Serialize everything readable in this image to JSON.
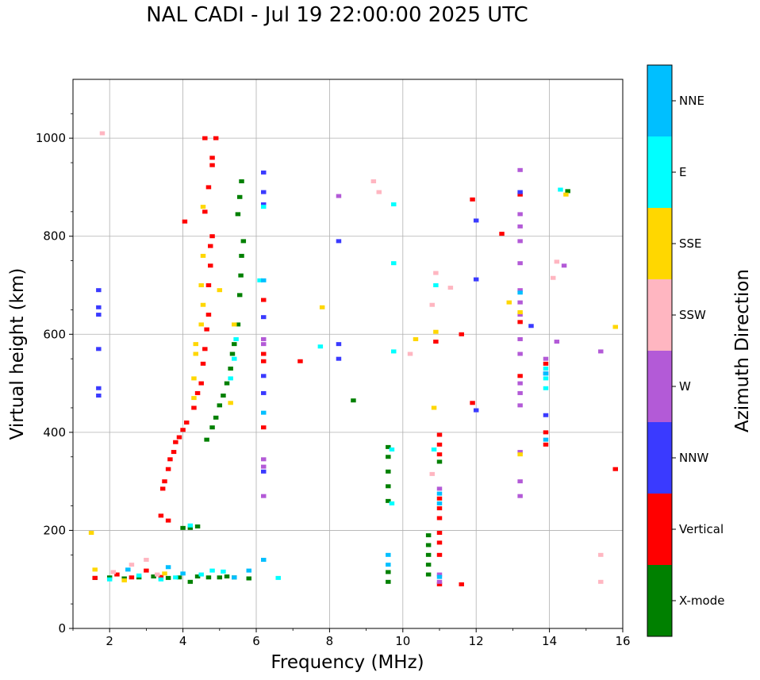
{
  "title": "NAL CADI - Jul 19 22:00:00 2025 UTC",
  "chart_data": {
    "type": "scatter",
    "title": "NAL CADI - Jul 19 22:00:00 2025 UTC",
    "xlabel": "Frequency (MHz)",
    "ylabel": "Virtual height (km)",
    "xlim": [
      1,
      16
    ],
    "ylim": [
      0,
      1120
    ],
    "xticks": [
      2,
      4,
      6,
      8,
      10,
      12,
      14,
      16
    ],
    "yticks": [
      0,
      200,
      400,
      600,
      800,
      1000
    ],
    "grid": true,
    "colorbar": {
      "label": "Azimuth Direction",
      "categories": [
        {
          "name": "X-mode",
          "color": "#008000"
        },
        {
          "name": "Vertical",
          "color": "#ff0000"
        },
        {
          "name": "NNW",
          "color": "#3a3aff"
        },
        {
          "name": "W",
          "color": "#b35ad7"
        },
        {
          "name": "SSW",
          "color": "#ffb6c1"
        },
        {
          "name": "SSE",
          "color": "#ffd700"
        },
        {
          "name": "E",
          "color": "#00ffff"
        },
        {
          "name": "NNE",
          "color": "#00bfff"
        }
      ]
    },
    "series": [
      {
        "name": "X-mode",
        "points": [
          [
            1.6,
            103
          ],
          [
            2.0,
            104
          ],
          [
            2.4,
            102
          ],
          [
            2.8,
            104
          ],
          [
            3.2,
            106
          ],
          [
            3.6,
            103
          ],
          [
            3.9,
            104
          ],
          [
            4.2,
            95
          ],
          [
            4.4,
            106
          ],
          [
            4.7,
            104
          ],
          [
            5.0,
            104
          ],
          [
            5.2,
            106
          ],
          [
            5.4,
            104
          ],
          [
            5.8,
            102
          ],
          [
            4.0,
            205
          ],
          [
            4.2,
            205
          ],
          [
            4.4,
            208
          ],
          [
            4.65,
            385
          ],
          [
            4.8,
            410
          ],
          [
            4.9,
            430
          ],
          [
            5.0,
            455
          ],
          [
            5.1,
            475
          ],
          [
            5.2,
            500
          ],
          [
            5.3,
            530
          ],
          [
            5.35,
            560
          ],
          [
            5.4,
            580
          ],
          [
            5.5,
            620
          ],
          [
            5.55,
            680
          ],
          [
            5.58,
            720
          ],
          [
            5.6,
            760
          ],
          [
            5.65,
            790
          ],
          [
            5.5,
            845
          ],
          [
            5.55,
            880
          ],
          [
            5.6,
            912
          ],
          [
            8.65,
            465
          ],
          [
            9.6,
            95
          ],
          [
            9.6,
            115
          ],
          [
            9.6,
            260
          ],
          [
            9.6,
            290
          ],
          [
            9.6,
            320
          ],
          [
            9.6,
            350
          ],
          [
            9.6,
            370
          ],
          [
            10.7,
            110
          ],
          [
            10.7,
            130
          ],
          [
            10.7,
            150
          ],
          [
            10.7,
            170
          ],
          [
            10.7,
            190
          ],
          [
            11.0,
            340
          ],
          [
            14.5,
            892
          ]
        ]
      },
      {
        "name": "Vertical",
        "points": [
          [
            1.6,
            103
          ],
          [
            2.2,
            110
          ],
          [
            2.6,
            104
          ],
          [
            3.0,
            118
          ],
          [
            3.4,
            105
          ],
          [
            3.6,
            220
          ],
          [
            3.4,
            230
          ],
          [
            3.45,
            285
          ],
          [
            3.5,
            300
          ],
          [
            3.6,
            325
          ],
          [
            3.65,
            345
          ],
          [
            3.75,
            360
          ],
          [
            3.8,
            380
          ],
          [
            3.9,
            390
          ],
          [
            4.0,
            405
          ],
          [
            4.1,
            420
          ],
          [
            4.3,
            450
          ],
          [
            4.4,
            480
          ],
          [
            4.5,
            500
          ],
          [
            4.55,
            540
          ],
          [
            4.6,
            570
          ],
          [
            4.65,
            610
          ],
          [
            4.7,
            640
          ],
          [
            4.7,
            700
          ],
          [
            4.75,
            740
          ],
          [
            4.75,
            780
          ],
          [
            4.8,
            800
          ],
          [
            4.6,
            850
          ],
          [
            4.7,
            900
          ],
          [
            4.8,
            945
          ],
          [
            4.8,
            960
          ],
          [
            4.6,
            1000
          ],
          [
            4.9,
            1000
          ],
          [
            4.05,
            830
          ],
          [
            6.2,
            410
          ],
          [
            6.2,
            545
          ],
          [
            6.2,
            560
          ],
          [
            6.2,
            670
          ],
          [
            7.2,
            545
          ],
          [
            10.9,
            585
          ],
          [
            11.0,
            90
          ],
          [
            11.0,
            150
          ],
          [
            11.0,
            175
          ],
          [
            11.0,
            195
          ],
          [
            11.0,
            225
          ],
          [
            11.0,
            245
          ],
          [
            11.0,
            265
          ],
          [
            11.0,
            355
          ],
          [
            11.0,
            375
          ],
          [
            11.0,
            395
          ],
          [
            11.6,
            90
          ],
          [
            11.6,
            600
          ],
          [
            11.9,
            460
          ],
          [
            11.9,
            875
          ],
          [
            12.7,
            805
          ],
          [
            13.2,
            515
          ],
          [
            13.2,
            625
          ],
          [
            13.2,
            885
          ],
          [
            13.9,
            375
          ],
          [
            13.9,
            400
          ],
          [
            13.9,
            540
          ],
          [
            15.8,
            325
          ]
        ]
      },
      {
        "name": "NNW",
        "points": [
          [
            1.7,
            475
          ],
          [
            1.7,
            490
          ],
          [
            1.7,
            570
          ],
          [
            1.7,
            640
          ],
          [
            1.7,
            655
          ],
          [
            1.7,
            690
          ],
          [
            6.2,
            320
          ],
          [
            6.2,
            480
          ],
          [
            6.2,
            515
          ],
          [
            6.2,
            635
          ],
          [
            6.2,
            865
          ],
          [
            6.2,
            890
          ],
          [
            6.2,
            930
          ],
          [
            8.25,
            550
          ],
          [
            8.25,
            580
          ],
          [
            8.25,
            790
          ],
          [
            12.0,
            445
          ],
          [
            12.0,
            712
          ],
          [
            12.0,
            832
          ],
          [
            13.5,
            617
          ],
          [
            13.9,
            435
          ],
          [
            13.9,
            520
          ],
          [
            13.2,
            890
          ]
        ]
      },
      {
        "name": "W",
        "points": [
          [
            6.2,
            270
          ],
          [
            6.2,
            330
          ],
          [
            6.2,
            345
          ],
          [
            6.2,
            580
          ],
          [
            6.2,
            590
          ],
          [
            8.25,
            882
          ],
          [
            11.0,
            95
          ],
          [
            11.0,
            110
          ],
          [
            11.0,
            285
          ],
          [
            13.2,
            270
          ],
          [
            13.2,
            300
          ],
          [
            13.2,
            360
          ],
          [
            13.2,
            455
          ],
          [
            13.2,
            480
          ],
          [
            13.2,
            500
          ],
          [
            13.2,
            560
          ],
          [
            13.2,
            590
          ],
          [
            13.2,
            640
          ],
          [
            13.2,
            665
          ],
          [
            13.2,
            690
          ],
          [
            13.2,
            745
          ],
          [
            13.2,
            790
          ],
          [
            13.2,
            820
          ],
          [
            13.2,
            845
          ],
          [
            13.2,
            935
          ],
          [
            13.9,
            550
          ],
          [
            14.2,
            585
          ],
          [
            14.4,
            740
          ],
          [
            15.4,
            565
          ]
        ]
      },
      {
        "name": "SSW",
        "points": [
          [
            1.8,
            1010
          ],
          [
            2.1,
            115
          ],
          [
            2.6,
            130
          ],
          [
            3.0,
            140
          ],
          [
            3.3,
            110
          ],
          [
            9.2,
            912
          ],
          [
            9.35,
            890
          ],
          [
            10.2,
            560
          ],
          [
            10.8,
            315
          ],
          [
            10.8,
            660
          ],
          [
            10.9,
            725
          ],
          [
            11.3,
            695
          ],
          [
            14.1,
            715
          ],
          [
            14.2,
            748
          ],
          [
            15.4,
            150
          ],
          [
            15.4,
            95
          ]
        ]
      },
      {
        "name": "SSE",
        "points": [
          [
            1.5,
            195
          ],
          [
            1.6,
            120
          ],
          [
            2.4,
            98
          ],
          [
            3.5,
            112
          ],
          [
            4.3,
            470
          ],
          [
            4.3,
            510
          ],
          [
            4.35,
            560
          ],
          [
            4.35,
            580
          ],
          [
            4.5,
            620
          ],
          [
            4.55,
            660
          ],
          [
            4.5,
            700
          ],
          [
            4.55,
            760
          ],
          [
            4.55,
            860
          ],
          [
            5.0,
            690
          ],
          [
            5.3,
            460
          ],
          [
            5.4,
            620
          ],
          [
            7.8,
            655
          ],
          [
            10.35,
            590
          ],
          [
            10.85,
            450
          ],
          [
            10.9,
            605
          ],
          [
            12.9,
            665
          ],
          [
            13.2,
            355
          ],
          [
            13.2,
            645
          ],
          [
            14.45,
            885
          ],
          [
            15.8,
            615
          ]
        ]
      },
      {
        "name": "E",
        "points": [
          [
            2.0,
            100
          ],
          [
            2.8,
            108
          ],
          [
            3.4,
            100
          ],
          [
            3.8,
            104
          ],
          [
            4.2,
            210
          ],
          [
            4.5,
            110
          ],
          [
            4.8,
            118
          ],
          [
            5.1,
            116
          ],
          [
            5.3,
            510
          ],
          [
            5.4,
            550
          ],
          [
            5.45,
            590
          ],
          [
            6.1,
            710
          ],
          [
            6.2,
            860
          ],
          [
            7.75,
            575
          ],
          [
            9.7,
            255
          ],
          [
            9.7,
            365
          ],
          [
            9.75,
            565
          ],
          [
            9.75,
            745
          ],
          [
            9.75,
            865
          ],
          [
            10.85,
            365
          ],
          [
            10.9,
            700
          ],
          [
            13.9,
            490
          ],
          [
            13.9,
            510
          ],
          [
            13.9,
            530
          ],
          [
            14.3,
            895
          ],
          [
            6.6,
            103
          ]
        ]
      },
      {
        "name": "NNE",
        "points": [
          [
            2.5,
            120
          ],
          [
            3.6,
            125
          ],
          [
            4.0,
            112
          ],
          [
            5.4,
            104
          ],
          [
            5.8,
            118
          ],
          [
            6.2,
            140
          ],
          [
            6.2,
            440
          ],
          [
            9.6,
            130
          ],
          [
            9.6,
            150
          ],
          [
            11.0,
            105
          ],
          [
            11.0,
            255
          ],
          [
            11.0,
            275
          ],
          [
            13.9,
            385
          ],
          [
            13.9,
            520
          ],
          [
            13.2,
            685
          ],
          [
            6.2,
            710
          ]
        ]
      }
    ]
  }
}
